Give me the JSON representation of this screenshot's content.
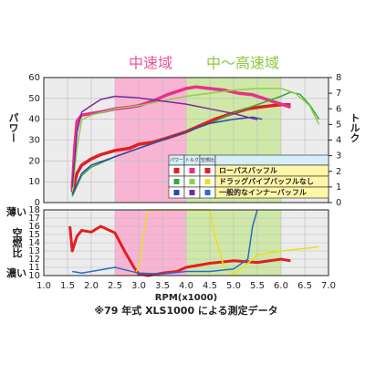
{
  "chart_data": [
    {
      "type": "line",
      "ylabel": "パワー",
      "y2label": "トルク",
      "xlim": [
        1.0,
        7.0
      ],
      "ylim": [
        0,
        60
      ],
      "yticks": [
        0,
        10,
        20,
        30,
        40,
        50,
        60
      ],
      "y2lim": [
        0,
        8
      ],
      "y2ticks": [
        0,
        1,
        2,
        3,
        4,
        5,
        6,
        7,
        8
      ],
      "grid": true,
      "bands": [
        {
          "from": 2.5,
          "to": 4.0,
          "color": "#f9b4d4",
          "label": "中速域",
          "label_color": "#e8559b"
        },
        {
          "from": 4.0,
          "to": 6.0,
          "color": "#cfe8a8",
          "label": "中〜高速域",
          "label_color": "#8cc63f"
        }
      ],
      "legend": {
        "columns": [
          "パワー",
          "トルク",
          "空燃比"
        ],
        "rows": [
          "ローパスバッフル",
          "ドラッグパイプバッフルなし",
          "一般的なインナーバッフル"
        ]
      },
      "series": [
        {
          "color": "#e02020",
          "width": 3.5,
          "x": [
            1.6,
            1.7,
            1.8,
            2.0,
            2.2,
            2.5,
            2.8,
            3.0,
            3.3,
            3.6,
            4.0,
            4.3,
            4.6,
            5.0,
            5.3,
            5.6,
            6.0,
            6.2
          ],
          "values": [
            5,
            14,
            18,
            21,
            23,
            25,
            26,
            28,
            29,
            31,
            34,
            37,
            40,
            43,
            45,
            46,
            47,
            47
          ]
        },
        {
          "color": "#e8308a",
          "width": 3.5,
          "axis": "y2",
          "x": [
            1.6,
            1.65,
            1.7,
            1.8,
            2.0,
            2.2,
            2.5,
            2.8,
            3.0,
            3.3,
            3.6,
            4.0,
            4.2,
            4.5,
            4.8,
            5.1,
            5.4,
            5.7,
            6.0,
            6.2
          ],
          "values": [
            0.8,
            3.5,
            5.2,
            5.6,
            5.7,
            5.8,
            6.0,
            6.1,
            6.2,
            6.5,
            6.9,
            7.3,
            7.4,
            7.3,
            7.2,
            7.0,
            6.9,
            6.6,
            6.3,
            6.1
          ]
        },
        {
          "color": "#3aa63a",
          "width": 1.5,
          "x": [
            1.6,
            1.8,
            2.0,
            2.5,
            3.0,
            3.5,
            4.0,
            4.5,
            5.0,
            5.5,
            6.0,
            6.2,
            6.4,
            6.6,
            6.8
          ],
          "values": [
            3,
            13,
            17,
            22,
            26,
            30,
            34,
            38,
            43,
            47,
            51,
            53,
            52,
            47,
            40
          ]
        },
        {
          "color": "#8ccf4e",
          "width": 1.5,
          "axis": "y2",
          "x": [
            1.6,
            1.7,
            1.8,
            2.0,
            2.5,
            3.0,
            3.5,
            4.0,
            4.5,
            5.0,
            5.5,
            6.0,
            6.3,
            6.6,
            6.8
          ],
          "values": [
            0.5,
            3.5,
            5.3,
            5.6,
            6.0,
            6.2,
            6.5,
            6.8,
            7.0,
            7.2,
            7.3,
            7.3,
            7.0,
            6.2,
            5.0
          ]
        },
        {
          "color": "#2a4aa8",
          "width": 1.5,
          "x": [
            1.6,
            1.8,
            2.0,
            2.5,
            3.0,
            3.5,
            4.0,
            4.5,
            5.0,
            5.4,
            5.6
          ],
          "values": [
            4,
            14,
            18,
            22,
            26,
            30,
            34,
            38,
            40,
            41,
            40
          ]
        },
        {
          "color": "#7a2a9a",
          "width": 1.5,
          "axis": "y2",
          "x": [
            1.6,
            1.7,
            1.8,
            2.0,
            2.2,
            2.5,
            3.0,
            3.5,
            4.0,
            4.5,
            5.0,
            5.5
          ],
          "values": [
            1,
            4.5,
            5.8,
            6.2,
            6.6,
            6.8,
            6.7,
            6.5,
            6.3,
            6.0,
            5.7,
            5.3
          ]
        }
      ]
    },
    {
      "type": "line",
      "ylabel": "空燃比",
      "top_note": "薄い",
      "bottom_note": "濃い",
      "xlabel": "RPM(x1000)",
      "footnote": "※79 年式 XLS1000 による測定データ",
      "xlim": [
        1.0,
        7.0
      ],
      "xticks": [
        {
          "value": 1,
          "label": "1.0"
        },
        1.5,
        {
          "value": 2,
          "label": "2.0"
        },
        2.5,
        {
          "value": 3,
          "label": "3.0"
        },
        3.5,
        {
          "value": 4,
          "label": "4.0"
        },
        4.5,
        {
          "value": 5,
          "label": "5.0"
        },
        5.5,
        {
          "value": 6,
          "label": "6.0"
        },
        6.5,
        {
          "value": 7,
          "label": "7.0"
        }
      ],
      "ylim": [
        10,
        18
      ],
      "yticks": [
        10,
        11,
        12,
        13,
        14,
        15,
        16,
        17,
        18
      ],
      "grid": true,
      "series": [
        {
          "color": "#e02020",
          "width": 3,
          "x": [
            1.55,
            1.6,
            1.7,
            1.8,
            2.0,
            2.2,
            2.5,
            2.7,
            2.9,
            3.0,
            3.2,
            3.5,
            3.8,
            4.0,
            4.5,
            5.0,
            5.5,
            6.0,
            6.2
          ],
          "values": [
            16,
            13,
            14.8,
            15.5,
            15.3,
            16,
            15.2,
            13,
            11,
            10.2,
            10,
            10.3,
            10.5,
            11,
            11.5,
            11.8,
            11.6,
            12,
            11.8
          ]
        },
        {
          "color": "#e8e020",
          "width": 1.5,
          "x": [
            2.9,
            3.0,
            3.1,
            3.2,
            3.5,
            4.0,
            4.5,
            4.6,
            4.8,
            5.0,
            5.2,
            5.5,
            6.0,
            6.5,
            6.8
          ],
          "values": [
            10,
            11,
            15,
            18,
            18,
            18,
            18,
            15,
            11,
            10.2,
            11,
            12.5,
            13,
            13.3,
            13.5
          ]
        },
        {
          "color": "#2a6ad0",
          "width": 1.5,
          "x": [
            1.6,
            1.8,
            2.0,
            2.5,
            3.0,
            3.5,
            4.0,
            4.5,
            5.0,
            5.3,
            5.4,
            5.5
          ],
          "values": [
            10.5,
            10.3,
            10.5,
            11,
            10.3,
            10.2,
            10.5,
            10.5,
            10.8,
            12,
            16,
            18
          ]
        }
      ]
    }
  ]
}
